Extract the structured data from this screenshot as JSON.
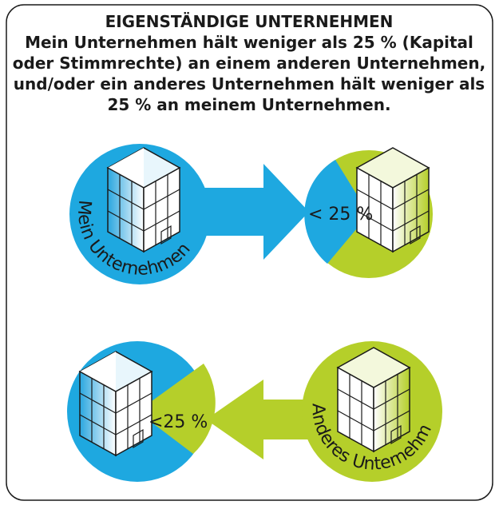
{
  "header": {
    "title": "EIGENSTÄNDIGE UNTERNEHMEN",
    "lines": [
      "Mein Unternehmen hält weniger als 25 % (Kapital",
      "oder Stimmrechte) an einem anderen Unternehmen,",
      "und/oder ein anderes Unternehmen hält weniger als",
      "25 % an meinem Unternehmen."
    ]
  },
  "nodes": [
    {
      "label": "Mein Unternehmen"
    },
    {
      "label": "< 25 %"
    },
    {
      "label": "<25 %"
    },
    {
      "label": "Anderes Unternehmen"
    }
  ]
}
